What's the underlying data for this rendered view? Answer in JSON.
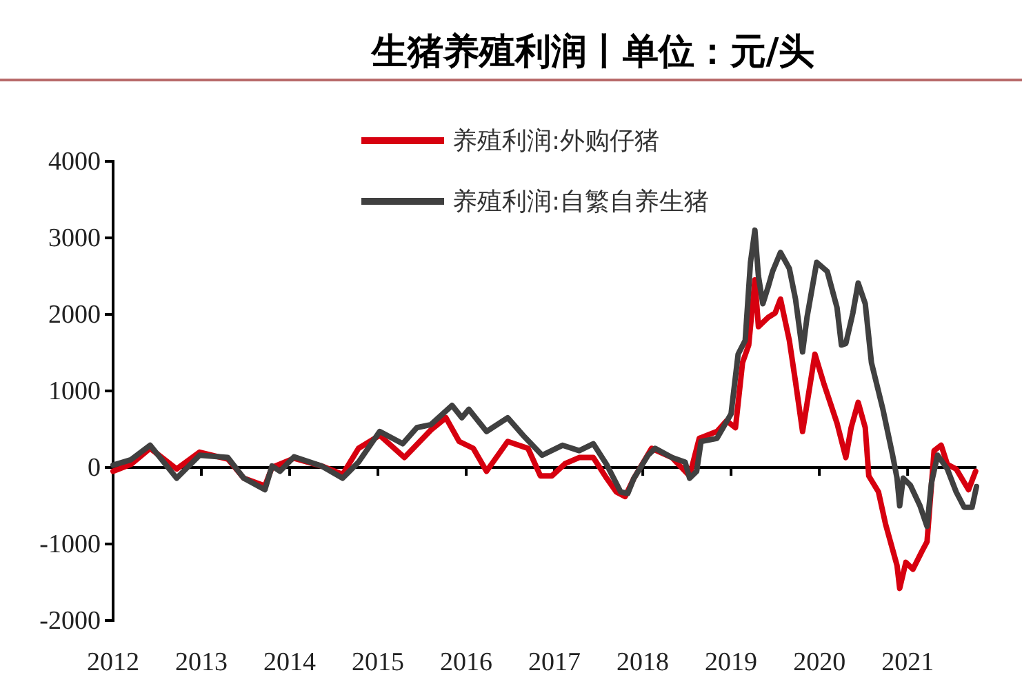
{
  "chart_data": {
    "type": "line",
    "title": "生猪养殖利润丨单位：元/头",
    "legend": "top",
    "line_style": "solid",
    "marker": "none",
    "xlim": [
      2012,
      2021.78
    ],
    "xticks": [
      2012,
      2013,
      2014,
      2015,
      2016,
      2017,
      2018,
      2019,
      2020,
      2021
    ],
    "ylim": [
      -2000,
      4000
    ],
    "yticks": [
      -2000,
      -1000,
      0,
      1000,
      2000,
      3000,
      4000
    ],
    "series": [
      {
        "name": "养殖利润:外购仔猪",
        "color": "#d7000f",
        "x": [
          2012,
          2012.2,
          2012.42,
          2012.72,
          2012.98,
          2013.3,
          2013.48,
          2013.72,
          2013.8,
          2014.05,
          2014.36,
          2014.6,
          2014.78,
          2015.02,
          2015.3,
          2015.6,
          2015.77,
          2015.92,
          2016.08,
          2016.23,
          2016.47,
          2016.7,
          2016.84,
          2016.97,
          2017.12,
          2017.28,
          2017.44,
          2017.59,
          2017.7,
          2017.8,
          2017.9,
          2018.1,
          2018.33,
          2018.53,
          2018.64,
          2018.84,
          2018.95,
          2019.05,
          2019.13,
          2019.2,
          2019.27,
          2019.31,
          2019.42,
          2019.5,
          2019.56,
          2019.66,
          2019.73,
          2019.81,
          2019.95,
          2020.05,
          2020.2,
          2020.3,
          2020.36,
          2020.44,
          2020.52,
          2020.56,
          2020.67,
          2020.75,
          2020.88,
          2020.91,
          2020.98,
          2021.06,
          2021.16,
          2021.22,
          2021.3,
          2021.38,
          2021.45,
          2021.55,
          2021.69,
          2021.77
        ],
        "values": [
          -50,
          40,
          250,
          -20,
          200,
          110,
          -140,
          -240,
          0,
          120,
          20,
          -90,
          250,
          420,
          130,
          490,
          650,
          340,
          250,
          -50,
          340,
          250,
          -110,
          -110,
          50,
          130,
          130,
          -140,
          -320,
          -380,
          -140,
          250,
          130,
          -110,
          380,
          470,
          610,
          520,
          1370,
          1600,
          2450,
          1840,
          1960,
          2020,
          2200,
          1660,
          1120,
          470,
          1480,
          1100,
          580,
          130,
          520,
          850,
          520,
          -110,
          -320,
          -740,
          -1280,
          -1580,
          -1240,
          -1330,
          -1100,
          -970,
          220,
          290,
          40,
          -20,
          -290,
          -50
        ]
      },
      {
        "name": "养殖利润:自繁自养生猪",
        "color": "#404040",
        "x": [
          2012,
          2012.2,
          2012.42,
          2012.72,
          2012.98,
          2013.3,
          2013.48,
          2013.72,
          2013.8,
          2013.89,
          2014.05,
          2014.36,
          2014.6,
          2014.78,
          2015.02,
          2015.28,
          2015.44,
          2015.6,
          2015.84,
          2015.95,
          2016.03,
          2016.23,
          2016.47,
          2016.66,
          2016.86,
          2017.09,
          2017.28,
          2017.44,
          2017.59,
          2017.75,
          2017.83,
          2017.9,
          2018.06,
          2018.14,
          2018.33,
          2018.48,
          2018.53,
          2018.61,
          2018.66,
          2018.84,
          2019.0,
          2019.08,
          2019.16,
          2019.22,
          2019.27,
          2019.31,
          2019.36,
          2019.42,
          2019.47,
          2019.56,
          2019.66,
          2019.73,
          2019.81,
          2019.86,
          2019.97,
          2020.09,
          2020.2,
          2020.25,
          2020.3,
          2020.38,
          2020.44,
          2020.52,
          2020.59,
          2020.72,
          2020.83,
          2020.88,
          2020.91,
          2020.95,
          2021.03,
          2021.14,
          2021.22,
          2021.27,
          2021.34,
          2021.45,
          2021.55,
          2021.64,
          2021.73,
          2021.78
        ],
        "values": [
          30,
          100,
          290,
          -140,
          160,
          130,
          -140,
          -290,
          20,
          -50,
          140,
          20,
          -140,
          70,
          470,
          310,
          520,
          560,
          810,
          650,
          760,
          470,
          650,
          400,
          160,
          290,
          220,
          310,
          40,
          -320,
          -340,
          -140,
          160,
          250,
          130,
          70,
          -140,
          -50,
          340,
          380,
          700,
          1480,
          1660,
          2680,
          3100,
          2500,
          2140,
          2360,
          2560,
          2810,
          2600,
          2200,
          1510,
          1960,
          2680,
          2560,
          2090,
          1600,
          1620,
          2020,
          2410,
          2140,
          1370,
          760,
          160,
          -140,
          -500,
          -140,
          -230,
          -500,
          -770,
          -200,
          160,
          -20,
          -320,
          -520,
          -520,
          -250
        ]
      }
    ]
  }
}
